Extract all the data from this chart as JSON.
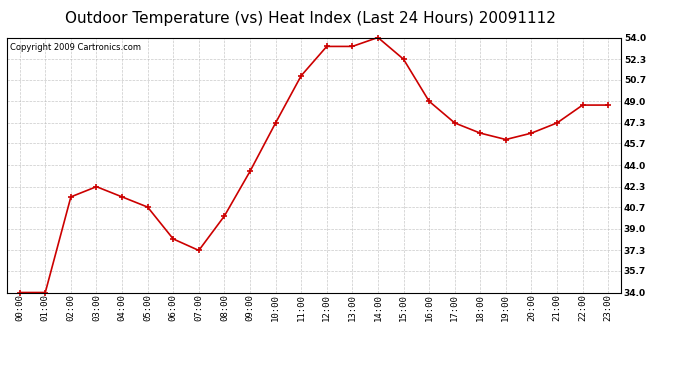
{
  "title": "Outdoor Temperature (vs) Heat Index (Last 24 Hours) 20091112",
  "copyright": "Copyright 2009 Cartronics.com",
  "x_labels": [
    "00:00",
    "01:00",
    "02:00",
    "03:00",
    "04:00",
    "05:00",
    "06:00",
    "07:00",
    "08:00",
    "09:00",
    "10:00",
    "11:00",
    "12:00",
    "13:00",
    "14:00",
    "15:00",
    "16:00",
    "17:00",
    "18:00",
    "19:00",
    "20:00",
    "21:00",
    "22:00",
    "23:00"
  ],
  "y_values": [
    34.0,
    34.0,
    41.5,
    42.3,
    41.5,
    40.7,
    38.2,
    37.3,
    40.0,
    43.5,
    47.3,
    51.0,
    53.3,
    53.3,
    54.0,
    52.3,
    49.0,
    47.3,
    46.5,
    46.0,
    46.5,
    47.3,
    48.7,
    48.7
  ],
  "line_color": "#cc0000",
  "marker": "+",
  "marker_size": 5,
  "marker_linewidth": 1.2,
  "line_width": 1.2,
  "ylim_min": 34.0,
  "ylim_max": 54.0,
  "yticks": [
    34.0,
    35.7,
    37.3,
    39.0,
    40.7,
    42.3,
    44.0,
    45.7,
    47.3,
    49.0,
    50.7,
    52.3,
    54.0
  ],
  "background_color": "#ffffff",
  "plot_bg_color": "#ffffff",
  "grid_color": "#bbbbbb",
  "grid_style": "--",
  "grid_alpha": 0.8,
  "title_fontsize": 11,
  "copyright_fontsize": 6,
  "tick_fontsize": 6.5,
  "fig_width": 6.9,
  "fig_height": 3.75
}
